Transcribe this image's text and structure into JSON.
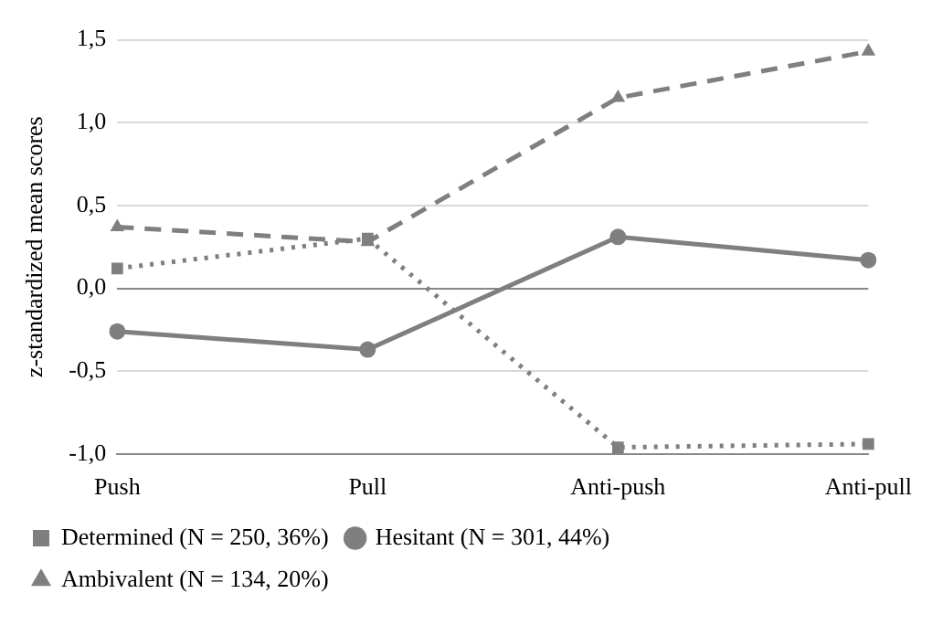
{
  "chart_data": {
    "type": "line",
    "ylabel": "z-standardized mean scores",
    "categories": [
      "Push",
      "Pull",
      "Anti-push",
      "Anti-pull"
    ],
    "series": [
      {
        "name": "Determined (N = 250, 36%)",
        "color": "#7f7f7f",
        "values": [
          0.12,
          0.3,
          -0.96,
          -0.94
        ],
        "marker": "square",
        "line_style": "dotted"
      },
      {
        "name": "Hesitant (N = 301, 44%)",
        "color": "#7f7f7f",
        "values": [
          -0.26,
          -0.37,
          0.31,
          0.17
        ],
        "marker": "circle",
        "line_style": "solid"
      },
      {
        "name": "Ambivalent (N = 134, 20%)",
        "color": "#7f7f7f",
        "values": [
          0.37,
          0.28,
          1.15,
          1.43
        ],
        "marker": "triangle",
        "line_style": "dashed"
      }
    ],
    "ylim": [
      -1.0,
      1.5
    ],
    "yticks": [
      {
        "value": -1.0,
        "label": "-1,0"
      },
      {
        "value": -0.5,
        "label": "-0,5"
      },
      {
        "value": 0,
        "label": "0,0"
      },
      {
        "value": 0.5,
        "label": "0,5"
      },
      {
        "value": 1.0,
        "label": "1,0"
      },
      {
        "value": 1.5,
        "label": "1,5"
      }
    ],
    "grid": "y",
    "legend": "bottom"
  }
}
